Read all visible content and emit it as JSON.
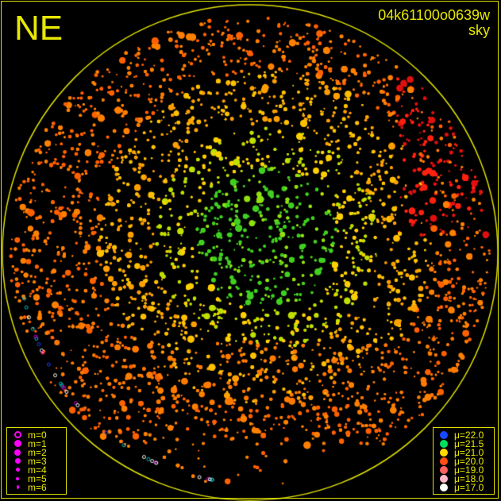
{
  "direction_label": "NE",
  "field_id": "04k61100o0639w",
  "field_mode": "sky",
  "colors": {
    "frame": "#e0e000",
    "text": "#e8e800",
    "magnitude_symbol": "#ff00ff"
  },
  "magnitude_legend": [
    {
      "label": "m=0",
      "style": "ring"
    },
    {
      "label": "m=1",
      "style": "dot"
    },
    {
      "label": "m=2",
      "style": "dot"
    },
    {
      "label": "m=3",
      "style": "dot"
    },
    {
      "label": "m=4",
      "style": "dot"
    },
    {
      "label": "m=5",
      "style": "dot"
    },
    {
      "label": "m=6",
      "style": "dot"
    }
  ],
  "brightness_legend": [
    {
      "label": "μ=22.0",
      "color": "#1848ff"
    },
    {
      "label": "μ=21.5",
      "color": "#00e060"
    },
    {
      "label": "μ=21.0",
      "color": "#ffd800"
    },
    {
      "label": "μ=20.0",
      "color": "#ff5010"
    },
    {
      "label": "μ=19.0",
      "color": "#ff6060"
    },
    {
      "label": "μ=18.0",
      "color": "#ffb8c8"
    },
    {
      "label": "μ=17.0",
      "color": "#ffffff"
    }
  ]
}
